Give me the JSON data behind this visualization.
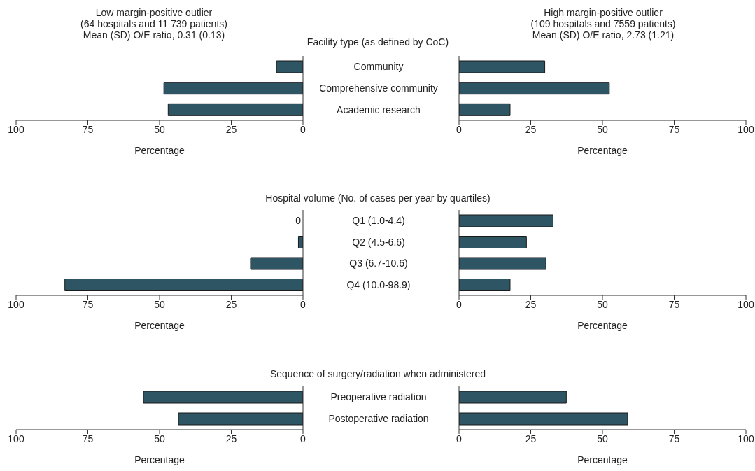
{
  "chart_data": [
    {
      "type": "bar",
      "orientation": "horizontal",
      "title": "Low margin-positive outlier\n(64 hospitals and 11 739 patients)\nMean (SD) O/E ratio, 0.31 (0.13)",
      "subtitle": "Facility type (as defined by CoC)",
      "categories": [
        "Community",
        "Comprehensive community",
        "Academic research"
      ],
      "values": [
        9.2,
        48.5,
        47.0
      ],
      "color": "#2e5564",
      "xlim": [
        100,
        0
      ],
      "xticks": [
        100,
        75,
        50,
        25,
        0
      ],
      "xlabel": "Percentage"
    },
    {
      "type": "bar",
      "orientation": "horizontal",
      "title": "High margin-positive outlier\n(109 hospitals and 7559 patients)\nMean (SD) O/E ratio, 2.73 (1.21)",
      "categories": [
        null,
        null,
        null
      ],
      "values": [
        29.9,
        52.4,
        17.8
      ],
      "color": "#2e5564",
      "xlim": [
        0,
        100
      ],
      "xticks": [
        0,
        25,
        50,
        75,
        100
      ],
      "xlabel": "Percentage",
      "tick_labels": "x"
    },
    {
      "type": "bar",
      "orientation": "horizontal",
      "subtitle": "Hospital volume (No. of cases per year by quartiles)",
      "categories": [
        "Q1 (1.0-4.4)",
        "Q2 (4.5-6.6)",
        "Q3 (6.7-10.6)",
        "Q4 (10.0-98.9)"
      ],
      "values": [
        0,
        1.6,
        18.3,
        83.0
      ],
      "value_labels": [
        "0",
        null,
        null,
        null
      ],
      "color": "#2e5564",
      "xlim": [
        100,
        0
      ],
      "xticks": [
        100,
        75,
        50,
        25,
        0
      ],
      "xlabel": "Percentage"
    },
    {
      "type": "bar",
      "orientation": "horizontal",
      "categories": [
        null,
        null,
        null,
        null
      ],
      "values": [
        32.8,
        23.5,
        30.3,
        17.8
      ],
      "color": "#2e5564",
      "xlim": [
        0,
        100
      ],
      "xticks": [
        0,
        25,
        50,
        75,
        100
      ],
      "xlabel": "Percentage",
      "tick_labels": "x"
    },
    {
      "type": "bar",
      "orientation": "horizontal",
      "subtitle": "Sequence of surgery/radiation when administered",
      "categories": [
        "Preoperative radiation",
        "Postoperative radiation"
      ],
      "values": [
        55.6,
        43.4
      ],
      "color": "#2e5564",
      "xlim": [
        100,
        0
      ],
      "xticks": [
        100,
        75,
        50,
        25,
        0
      ],
      "xlabel": "Percentage"
    },
    {
      "type": "bar",
      "orientation": "horizontal",
      "categories": [
        null,
        null
      ],
      "values": [
        37.4,
        58.8
      ],
      "color": "#2e5564",
      "xlim": [
        0,
        100
      ],
      "xticks": [
        0,
        25,
        50,
        75,
        100
      ],
      "xlabel": "Percentage",
      "tick_labels": "x"
    }
  ]
}
